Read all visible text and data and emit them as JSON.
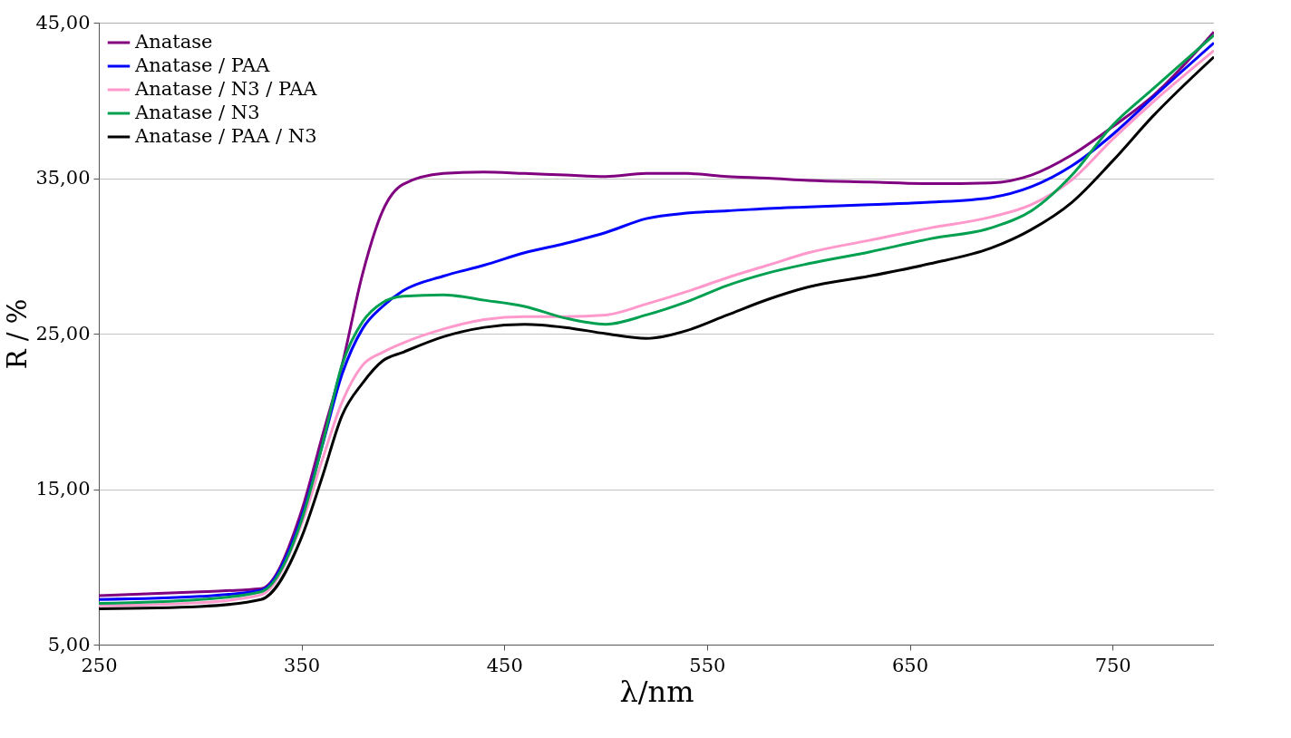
{
  "chart_data": {
    "type": "line",
    "xlabel": "λ/nm",
    "ylabel": "R / %",
    "xlim": [
      250,
      800
    ],
    "xticks": [
      250,
      350,
      450,
      550,
      650,
      750
    ],
    "ylim": [
      5,
      45
    ],
    "yticks": [
      {
        "value": 5,
        "label": "5,00"
      },
      {
        "value": 15,
        "label": "15,00"
      },
      {
        "value": 25,
        "label": "25,00"
      },
      {
        "value": 35,
        "label": "35,00"
      },
      {
        "value": 45,
        "label": "45,00"
      }
    ],
    "grid": "y",
    "legend": "top left",
    "marker": "none",
    "line_style": "solid",
    "x": [
      250,
      300,
      330,
      350,
      360,
      370,
      380,
      390,
      400,
      420,
      440,
      460,
      480,
      500,
      520,
      540,
      560,
      580,
      600,
      630,
      660,
      690,
      710,
      730,
      750,
      770,
      800
    ],
    "series": [
      {
        "name": "Anatase",
        "color": "#800080",
        "values": [
          8.15,
          8.4,
          8.6,
          13.6,
          18.3,
          23.0,
          28.8,
          32.9,
          34.6,
          35.3,
          35.4,
          35.3,
          35.2,
          35.1,
          35.3,
          35.3,
          35.1,
          35.0,
          34.85,
          34.75,
          34.65,
          34.7,
          35.2,
          36.5,
          38.3,
          40.3,
          44.4
        ]
      },
      {
        "name": "Anatase / PAA",
        "color": "#0000ff",
        "values": [
          7.9,
          8.1,
          8.5,
          13.2,
          17.7,
          22.4,
          25.3,
          26.75,
          27.75,
          28.7,
          29.4,
          30.2,
          30.8,
          31.5,
          32.4,
          32.75,
          32.9,
          33.05,
          33.15,
          33.3,
          33.45,
          33.75,
          34.45,
          35.8,
          37.8,
          40.2,
          43.7
        ]
      },
      {
        "name": "Anatase / N3 / PAA",
        "color": "#ff99cc",
        "values": [
          7.5,
          7.7,
          8.2,
          12.75,
          16.8,
          20.6,
          22.95,
          23.8,
          24.4,
          25.3,
          25.9,
          26.1,
          26.1,
          26.2,
          26.9,
          27.7,
          28.6,
          29.4,
          30.2,
          31.0,
          31.8,
          32.5,
          33.3,
          34.9,
          37.5,
          39.9,
          43.2
        ]
      },
      {
        "name": "Anatase / N3",
        "color": "#00a050",
        "values": [
          7.65,
          7.9,
          8.4,
          13.0,
          17.7,
          23.0,
          25.75,
          27.0,
          27.4,
          27.5,
          27.15,
          26.75,
          26.0,
          25.6,
          26.2,
          27.05,
          28.1,
          28.9,
          29.5,
          30.25,
          31.1,
          31.8,
          32.9,
          35.2,
          38.4,
          40.75,
          44.2
        ]
      },
      {
        "name": "Anatase / PAA / N3",
        "color": "#000000",
        "values": [
          7.3,
          7.45,
          7.9,
          11.9,
          15.7,
          19.75,
          21.8,
          23.25,
          23.8,
          24.8,
          25.4,
          25.6,
          25.4,
          25.0,
          24.7,
          25.2,
          26.2,
          27.2,
          28.0,
          28.7,
          29.5,
          30.5,
          31.7,
          33.45,
          36.1,
          39.0,
          42.8
        ]
      }
    ]
  }
}
